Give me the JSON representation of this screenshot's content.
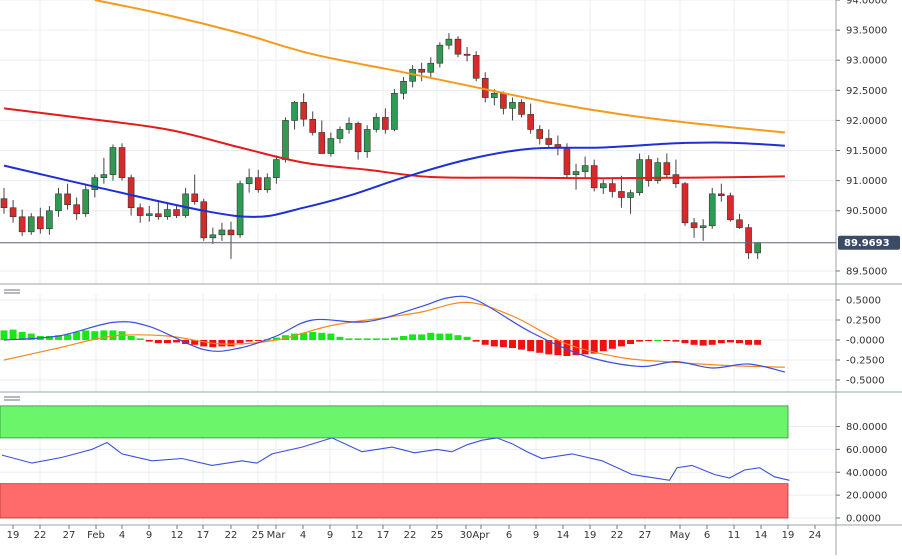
{
  "colors": {
    "bull": "#2e9a52",
    "bear": "#d62b2b",
    "sma_fast": "#1f2fd6",
    "sma_mid": "#e31b1b",
    "sma_slow": "#f59a1b",
    "macd_line": "#3a4fe0",
    "signal_line": "#f4891f",
    "hist_pos": "#19e619",
    "hist_neg": "#ee1111",
    "rsi_line": "#3a4fe0",
    "overbought": "#6bf56b",
    "oversold": "#ff6b6b",
    "price_tag": "#3b4a66",
    "grid": "#e9edf2"
  },
  "chart_data": [
    {
      "type": "candlestick",
      "panel": "price",
      "y_ticks": [
        "94.0000",
        "93.5000",
        "93.0000",
        "92.5000",
        "92.0000",
        "91.5000",
        "91.0000",
        "90.5000",
        "89.5000"
      ],
      "ylim": [
        89.3,
        94.0
      ],
      "last_price": "89.9693",
      "last_value": 89.9693,
      "x_labels": [
        "19",
        "22",
        "27",
        "Feb",
        "4",
        "9",
        "12",
        "17",
        "22",
        "25",
        "Mar",
        "4",
        "9",
        "12",
        "17",
        "22",
        "25",
        "30",
        "Apr",
        "6",
        "9",
        "14",
        "19",
        "22",
        "27",
        "May",
        "6",
        "11",
        "14",
        "19",
        "24"
      ],
      "candles": [
        [
          90.7,
          90.88,
          90.45,
          90.55
        ],
        [
          90.55,
          90.68,
          90.3,
          90.4
        ],
        [
          90.4,
          90.52,
          90.08,
          90.15
        ],
        [
          90.15,
          90.46,
          90.1,
          90.4
        ],
        [
          90.4,
          90.55,
          90.12,
          90.2
        ],
        [
          90.2,
          90.58,
          90.1,
          90.5
        ],
        [
          90.5,
          90.88,
          90.4,
          90.78
        ],
        [
          90.78,
          90.95,
          90.52,
          90.6
        ],
        [
          90.6,
          90.72,
          90.35,
          90.45
        ],
        [
          90.45,
          90.95,
          90.4,
          90.85
        ],
        [
          90.85,
          91.1,
          90.72,
          91.05
        ],
        [
          91.05,
          91.38,
          90.95,
          91.1
        ],
        [
          91.1,
          91.6,
          91.0,
          91.55
        ],
        [
          91.55,
          91.62,
          91.0,
          91.05
        ],
        [
          91.05,
          91.1,
          90.42,
          90.55
        ],
        [
          90.55,
          90.62,
          90.3,
          90.42
        ],
        [
          90.42,
          90.58,
          90.32,
          90.45
        ],
        [
          90.45,
          90.66,
          90.35,
          90.4
        ],
        [
          90.4,
          90.62,
          90.35,
          90.52
        ],
        [
          90.52,
          90.6,
          90.38,
          90.42
        ],
        [
          90.42,
          90.88,
          90.38,
          90.78
        ],
        [
          90.78,
          91.1,
          90.6,
          90.65
        ],
        [
          90.65,
          90.7,
          90.0,
          90.05
        ],
        [
          90.05,
          90.22,
          89.95,
          90.1
        ],
        [
          90.1,
          90.3,
          90.0,
          90.18
        ],
        [
          90.18,
          90.32,
          89.7,
          90.1
        ],
        [
          90.1,
          91.0,
          90.05,
          90.95
        ],
        [
          90.95,
          91.2,
          90.8,
          91.05
        ],
        [
          91.05,
          91.18,
          90.8,
          90.85
        ],
        [
          90.85,
          91.12,
          90.8,
          91.05
        ],
        [
          91.05,
          91.42,
          90.95,
          91.35
        ],
        [
          91.35,
          92.05,
          91.3,
          92.0
        ],
        [
          92.0,
          92.32,
          91.85,
          92.3
        ],
        [
          92.3,
          92.45,
          91.9,
          92.02
        ],
        [
          92.02,
          92.15,
          91.75,
          91.8
        ],
        [
          91.8,
          92.0,
          91.45,
          91.45
        ],
        [
          91.45,
          91.8,
          91.4,
          91.7
        ],
        [
          91.7,
          91.9,
          91.62,
          91.85
        ],
        [
          91.85,
          92.05,
          91.78,
          91.95
        ],
        [
          91.95,
          91.98,
          91.35,
          91.48
        ],
        [
          91.48,
          91.92,
          91.38,
          91.85
        ],
        [
          91.85,
          92.12,
          91.8,
          92.05
        ],
        [
          92.05,
          92.2,
          91.78,
          91.85
        ],
        [
          91.85,
          92.52,
          91.82,
          92.45
        ],
        [
          92.45,
          92.72,
          92.35,
          92.65
        ],
        [
          92.65,
          92.92,
          92.55,
          92.85
        ],
        [
          92.85,
          92.96,
          92.65,
          92.8
        ],
        [
          92.8,
          93.05,
          92.72,
          92.95
        ],
        [
          92.95,
          93.3,
          92.88,
          93.25
        ],
        [
          93.25,
          93.45,
          93.18,
          93.35
        ],
        [
          93.35,
          93.4,
          93.05,
          93.1
        ],
        [
          93.1,
          93.22,
          92.98,
          93.08
        ],
        [
          93.08,
          93.15,
          92.65,
          92.7
        ],
        [
          92.7,
          92.8,
          92.3,
          92.38
        ],
        [
          92.38,
          92.52,
          92.25,
          92.45
        ],
        [
          92.45,
          92.48,
          92.1,
          92.2
        ],
        [
          92.2,
          92.38,
          92.0,
          92.3
        ],
        [
          92.3,
          92.35,
          92.05,
          92.1
        ],
        [
          92.1,
          92.28,
          91.78,
          91.85
        ],
        [
          91.85,
          91.92,
          91.6,
          91.7
        ],
        [
          91.7,
          91.85,
          91.55,
          91.6
        ],
        [
          91.6,
          91.75,
          91.42,
          91.55
        ],
        [
          91.55,
          91.62,
          91.05,
          91.1
        ],
        [
          91.1,
          91.28,
          90.85,
          91.15
        ],
        [
          91.15,
          91.4,
          91.05,
          91.25
        ],
        [
          91.25,
          91.35,
          90.82,
          90.88
        ],
        [
          90.88,
          91.02,
          90.78,
          90.95
        ],
        [
          90.95,
          91.05,
          90.72,
          90.82
        ],
        [
          90.82,
          91.08,
          90.55,
          90.72
        ],
        [
          90.72,
          90.85,
          90.45,
          90.8
        ],
        [
          90.8,
          91.45,
          90.75,
          91.35
        ],
        [
          91.35,
          91.42,
          90.9,
          91.0
        ],
        [
          91.0,
          91.38,
          90.95,
          91.3
        ],
        [
          91.3,
          91.45,
          91.05,
          91.1
        ],
        [
          91.1,
          91.35,
          90.88,
          90.95
        ],
        [
          90.95,
          90.98,
          90.25,
          90.3
        ],
        [
          90.3,
          90.38,
          90.05,
          90.22
        ],
        [
          90.22,
          90.36,
          90.0,
          90.25
        ],
        [
          90.25,
          90.88,
          90.2,
          90.78
        ],
        [
          90.78,
          90.95,
          90.65,
          90.75
        ],
        [
          90.75,
          90.8,
          90.32,
          90.35
        ],
        [
          90.35,
          90.45,
          90.2,
          90.22
        ],
        [
          90.22,
          90.28,
          89.7,
          89.8
        ],
        [
          89.8,
          89.98,
          89.7,
          89.97
        ]
      ],
      "sma_fast": [
        [
          0,
          91.25
        ],
        [
          10,
          90.9
        ],
        [
          22,
          90.5
        ],
        [
          28,
          90.4
        ],
        [
          33,
          90.55
        ],
        [
          38,
          90.75
        ],
        [
          44,
          91.05
        ],
        [
          51,
          91.35
        ],
        [
          58,
          91.53
        ],
        [
          66,
          91.55
        ],
        [
          74,
          91.62
        ],
        [
          80,
          91.63
        ],
        [
          86,
          91.58
        ]
      ],
      "sma_mid": [
        [
          0,
          92.2
        ],
        [
          8,
          92.05
        ],
        [
          18,
          91.85
        ],
        [
          26,
          91.55
        ],
        [
          33,
          91.3
        ],
        [
          40,
          91.18
        ],
        [
          47,
          91.06
        ],
        [
          56,
          91.05
        ],
        [
          66,
          91.04
        ],
        [
          76,
          91.05
        ],
        [
          86,
          91.07
        ]
      ],
      "sma_slow": [
        [
          10,
          94.0
        ],
        [
          18,
          93.75
        ],
        [
          26,
          93.45
        ],
        [
          34,
          93.1
        ],
        [
          44,
          92.8
        ],
        [
          52,
          92.55
        ],
        [
          60,
          92.3
        ],
        [
          68,
          92.1
        ],
        [
          76,
          91.95
        ],
        [
          86,
          91.8
        ]
      ]
    },
    {
      "type": "macd",
      "panel": "macd",
      "y_ticks": [
        "0.5000",
        "0.2500",
        "-0.0000",
        "-0.2500",
        "-0.5000"
      ],
      "ylim": [
        -0.6,
        0.55
      ],
      "histogram": [
        0.12,
        0.13,
        0.1,
        0.08,
        0.05,
        0.05,
        0.06,
        0.07,
        0.1,
        0.12,
        0.11,
        0.12,
        0.12,
        0.11,
        0.05,
        0.02,
        -0.02,
        -0.04,
        -0.04,
        -0.03,
        -0.05,
        -0.06,
        -0.08,
        -0.09,
        -0.08,
        -0.08,
        -0.04,
        -0.02,
        -0.01,
        0.01,
        0.03,
        0.06,
        0.08,
        0.09,
        0.1,
        0.09,
        0.08,
        0.04,
        0.02,
        0.02,
        0.02,
        0.02,
        0.02,
        0.03,
        0.05,
        0.07,
        0.07,
        0.09,
        0.08,
        0.08,
        0.06,
        0.04,
        -0.02,
        -0.06,
        -0.08,
        -0.09,
        -0.1,
        -0.12,
        -0.14,
        -0.16,
        -0.18,
        -0.19,
        -0.2,
        -0.19,
        -0.18,
        -0.17,
        -0.14,
        -0.11,
        -0.08,
        -0.05,
        -0.02,
        -0.01,
        0.0,
        -0.01,
        -0.02,
        -0.04,
        -0.06,
        -0.07,
        -0.06,
        -0.04,
        -0.03,
        -0.04,
        -0.06,
        -0.06
      ],
      "macd_line": [
        [
          0,
          0.0
        ],
        [
          6,
          0.05
        ],
        [
          12,
          0.22
        ],
        [
          16,
          0.17
        ],
        [
          22,
          -0.12
        ],
        [
          26,
          -0.1
        ],
        [
          30,
          0.05
        ],
        [
          34,
          0.25
        ],
        [
          40,
          0.23
        ],
        [
          46,
          0.42
        ],
        [
          49,
          0.53
        ],
        [
          52,
          0.5
        ],
        [
          58,
          0.1
        ],
        [
          64,
          -0.2
        ],
        [
          70,
          -0.33
        ],
        [
          74,
          -0.27
        ],
        [
          78,
          -0.35
        ],
        [
          82,
          -0.3
        ],
        [
          86,
          -0.4
        ]
      ],
      "signal_line": [
        [
          0,
          -0.25
        ],
        [
          6,
          -0.1
        ],
        [
          12,
          0.05
        ],
        [
          18,
          0.05
        ],
        [
          24,
          -0.05
        ],
        [
          30,
          0.0
        ],
        [
          36,
          0.18
        ],
        [
          42,
          0.28
        ],
        [
          46,
          0.35
        ],
        [
          51,
          0.47
        ],
        [
          56,
          0.3
        ],
        [
          62,
          -0.05
        ],
        [
          68,
          -0.22
        ],
        [
          74,
          -0.28
        ],
        [
          80,
          -0.32
        ],
        [
          86,
          -0.34
        ]
      ]
    },
    {
      "type": "rsi",
      "panel": "rsi",
      "y_ticks": [
        "80.0000",
        "60.0000",
        "40.0000",
        "20.0000",
        "0.0000"
      ],
      "ylim": [
        0,
        100
      ],
      "overbought_zone": [
        70,
        98
      ],
      "oversold_zone": [
        0,
        30
      ],
      "values": [
        [
          0,
          55
        ],
        [
          4,
          48
        ],
        [
          8,
          53
        ],
        [
          12,
          60
        ],
        [
          14,
          66
        ],
        [
          16,
          56
        ],
        [
          20,
          50
        ],
        [
          24,
          52
        ],
        [
          28,
          46
        ],
        [
          32,
          50
        ],
        [
          34,
          48
        ],
        [
          36,
          56
        ],
        [
          40,
          62
        ],
        [
          42,
          66
        ],
        [
          44,
          70
        ],
        [
          46,
          64
        ],
        [
          48,
          58
        ],
        [
          52,
          62
        ],
        [
          55,
          57
        ],
        [
          58,
          60
        ],
        [
          60,
          58
        ],
        [
          62,
          64
        ],
        [
          64,
          68
        ],
        [
          66,
          70
        ],
        [
          68,
          65
        ],
        [
          70,
          58
        ],
        [
          72,
          52
        ],
        [
          76,
          56
        ],
        [
          80,
          50
        ],
        [
          84,
          38
        ],
        [
          86,
          36
        ],
        [
          89,
          33
        ],
        [
          90,
          44
        ],
        [
          92,
          46
        ],
        [
          95,
          38
        ],
        [
          97,
          35
        ],
        [
          99,
          42
        ],
        [
          101,
          44
        ],
        [
          103,
          36
        ],
        [
          105,
          33
        ]
      ]
    }
  ]
}
